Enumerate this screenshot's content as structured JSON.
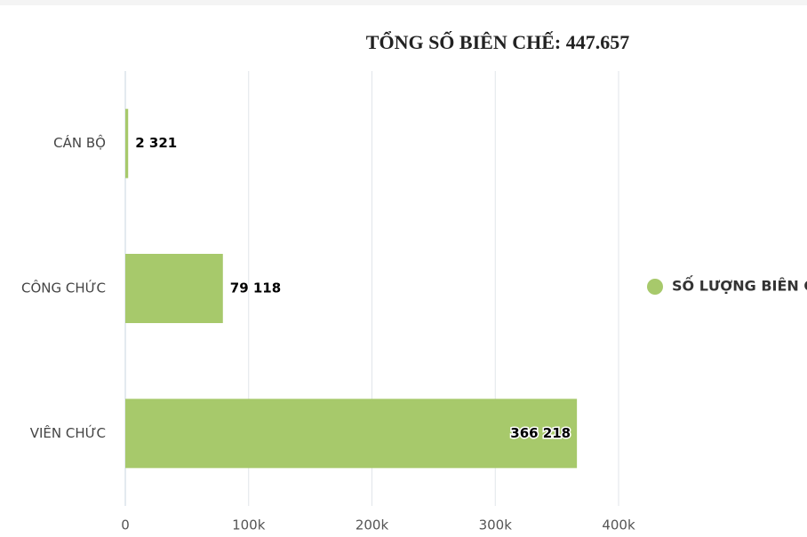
{
  "chart_data": {
    "type": "bar",
    "orientation": "horizontal",
    "title": "TỔNG SỐ BIÊN CHẾ: 447.657",
    "categories": [
      "CÁN BỘ",
      "CÔNG CHỨC",
      "VIÊN CHỨC"
    ],
    "series": [
      {
        "name": "SỐ LƯỢNG BIÊN C",
        "color": "#a7c96b",
        "values": [
          2321,
          79118,
          366218
        ],
        "value_labels": [
          "2 321",
          "79 118",
          "366 218"
        ]
      }
    ],
    "xlim": [
      0,
      400000
    ],
    "xticks": [
      0,
      {
        "value": 100000,
        "label": "100k"
      },
      {
        "value": 200000,
        "label": "200k"
      },
      {
        "value": 300000,
        "label": "300k"
      },
      {
        "value": 400000,
        "label": "400k"
      }
    ],
    "grid": true,
    "legend": "right"
  }
}
